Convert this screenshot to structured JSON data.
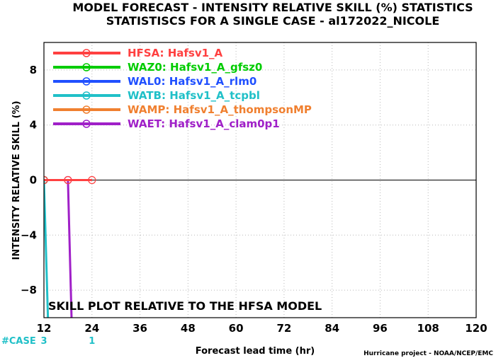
{
  "chart_data": {
    "type": "line",
    "title": "MODEL FORECAST - INTENSITY RELATIVE SKILL (%) STATISTICS",
    "subtitle": "STATISTISCS FOR A SINGLE CASE - al172022_NICOLE",
    "xlabel": "Forecast lead time (hr)",
    "ylabel": "INTENSITY RELATIVE SKILL (%)",
    "xlim": [
      12,
      120
    ],
    "ylim": [
      -10,
      10
    ],
    "x_ticks": [
      12,
      24,
      36,
      48,
      60,
      72,
      84,
      96,
      108,
      120
    ],
    "y_ticks": [
      8,
      4,
      0,
      -4,
      -8
    ],
    "grid": true,
    "legend_placement": "top-left",
    "annotation": "SKILL PLOT RELATIVE TO THE HFSA MODEL",
    "credit": "Hurricane project - NOAA/NCEP/EMC",
    "case_counts": {
      "label": "#CASE",
      "values": [
        {
          "x": 12,
          "count": "3"
        },
        {
          "x": 24,
          "count": "1"
        }
      ]
    },
    "series": [
      {
        "name": "HFSA:  Hafsv1_A",
        "color": "#ff4040",
        "x": [
          12,
          18,
          24
        ],
        "y": [
          0,
          0,
          0
        ]
      },
      {
        "name": "WAZ0:  Hafsv1_A_gfsz0",
        "color": "#00cc00",
        "x": [
          12
        ],
        "y": [
          0
        ]
      },
      {
        "name": "WAL0:  Hafsv1_A_rlm0",
        "color": "#2050ff",
        "x": [
          12
        ],
        "y": [
          0
        ]
      },
      {
        "name": "WATB:  Hafsv1_A_tcpbl",
        "color": "#20c0c8",
        "x": [
          12,
          13
        ],
        "y": [
          0,
          -10
        ]
      },
      {
        "name": "WAMP:  Hafsv1_A_thompsonMP",
        "color": "#f08030",
        "x": [
          12
        ],
        "y": [
          0
        ]
      },
      {
        "name": "WAET:  Hafsv1_A_clam0p1",
        "color": "#a020c8",
        "x": [
          12,
          18,
          18.9
        ],
        "y": [
          0,
          0,
          -10
        ]
      }
    ]
  }
}
